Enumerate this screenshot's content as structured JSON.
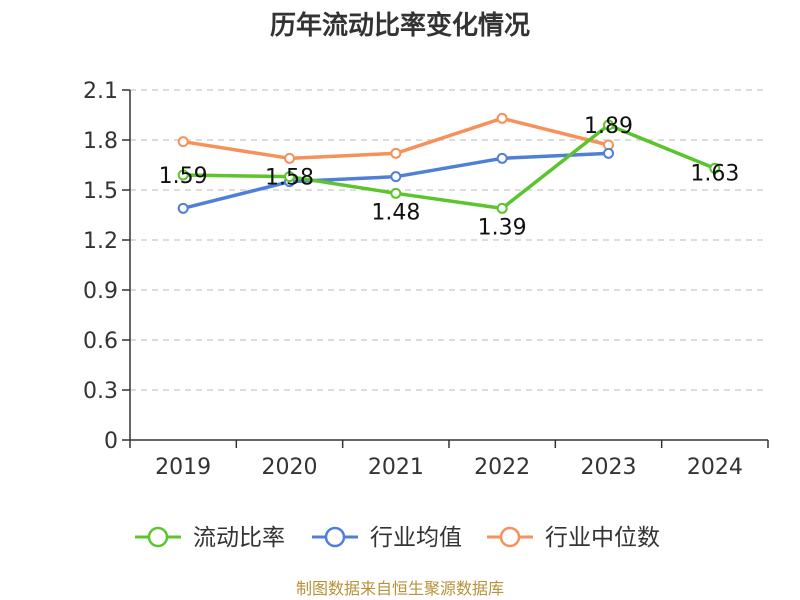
{
  "source": "制图数据来自恒生聚源数据库",
  "chart_data": {
    "type": "line",
    "title": "历年流动比率变化情况",
    "xlabel": "",
    "ylabel": "",
    "categories": [
      "2019",
      "2020",
      "2021",
      "2022",
      "2023",
      "2024"
    ],
    "ylim": [
      0,
      2.1
    ],
    "yticks": [
      "0",
      "0.3",
      "0.6",
      "0.9",
      "1.2",
      "1.5",
      "1.8",
      "2.1"
    ],
    "grid": true,
    "legend_position": "bottom",
    "series": [
      {
        "name": "流动比率",
        "color": "#5cc42c",
        "values": [
          1.59,
          1.58,
          1.48,
          1.39,
          1.89,
          1.63
        ],
        "labels": [
          "1.59",
          "1.58",
          "1.48",
          "1.39",
          "1.89",
          "1.63"
        ]
      },
      {
        "name": "行业均值",
        "color": "#4f7fd6",
        "values": [
          1.39,
          1.55,
          1.58,
          1.69,
          1.72,
          null
        ]
      },
      {
        "name": "行业中位数",
        "color": "#f7915a",
        "values": [
          1.79,
          1.69,
          1.72,
          1.93,
          1.77,
          null
        ]
      }
    ]
  }
}
